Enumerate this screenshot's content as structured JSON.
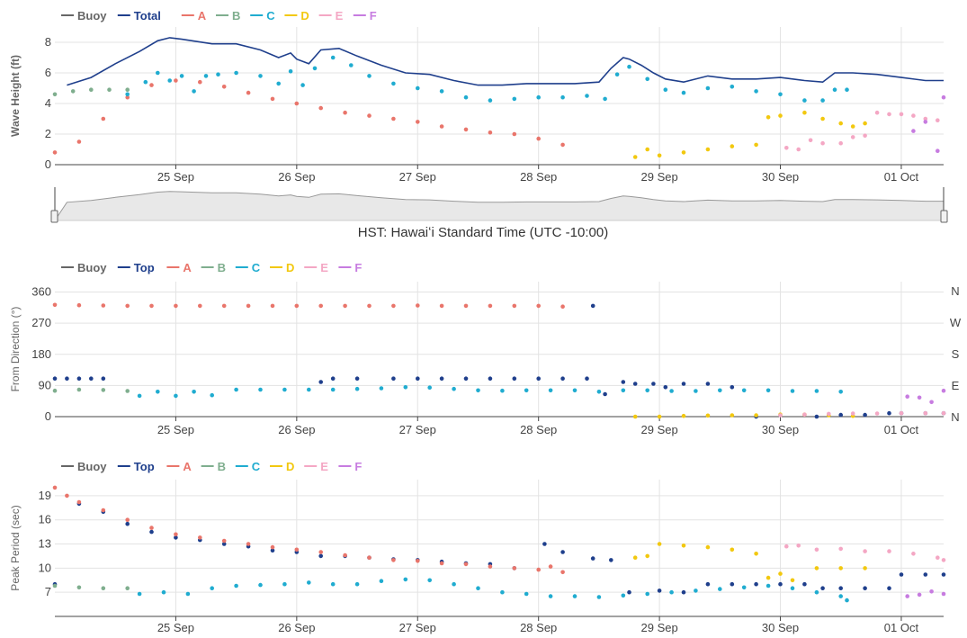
{
  "colors": {
    "Buoy": "#666666",
    "Total": "#1f3f8c",
    "Top": "#1f3f8c",
    "A": "#e9756b",
    "B": "#7fae8e",
    "C": "#20acd0",
    "D": "#f2c80f",
    "E": "#f4a7c4",
    "F": "#c77ce0",
    "navigator_fill": "#e8e8e8",
    "navigator_line": "#999999"
  },
  "timezone_label": "HST: Hawaiʻi Standard Time (UTC -10:00)",
  "x_ticks": [
    "25 Sep",
    "26 Sep",
    "27 Sep",
    "28 Sep",
    "29 Sep",
    "30 Sep",
    "01 Oct"
  ],
  "compass_labels": [
    "N",
    "W",
    "S",
    "E",
    "N"
  ],
  "chart_data": [
    {
      "type": "scatter",
      "ylabel": "Wave Height (ft)",
      "ylim": [
        0,
        9
      ],
      "yticks": [
        0,
        2,
        4,
        6,
        8
      ],
      "xlabel": "HST: Hawaiʻi Standard Time (UTC -10:00)",
      "x_categories": [
        "25 Sep",
        "26 Sep",
        "27 Sep",
        "28 Sep",
        "29 Sep",
        "30 Sep",
        "01 Oct"
      ],
      "legend": [
        "Buoy",
        "Total",
        "A",
        "B",
        "C",
        "D",
        "E",
        "F"
      ],
      "legend_position": "top-left",
      "grid": true,
      "series": [
        {
          "name": "Total",
          "style": "line",
          "x": [
            24.1,
            24.3,
            24.5,
            24.7,
            24.85,
            24.95,
            25.05,
            25.3,
            25.5,
            25.7,
            25.85,
            25.95,
            26.0,
            26.1,
            26.2,
            26.35,
            26.5,
            26.7,
            26.9,
            27.1,
            27.3,
            27.5,
            27.7,
            27.9,
            28.1,
            28.3,
            28.5,
            28.6,
            28.7,
            28.75,
            28.85,
            28.95,
            29.05,
            29.2,
            29.4,
            29.6,
            29.8,
            30.0,
            30.2,
            30.35,
            30.45,
            30.6,
            30.8,
            31.0,
            31.2,
            31.35
          ],
          "y": [
            5.2,
            5.7,
            6.6,
            7.4,
            8.1,
            8.3,
            8.2,
            7.9,
            7.9,
            7.5,
            7.0,
            7.3,
            6.9,
            6.6,
            7.5,
            7.6,
            7.1,
            6.5,
            6.0,
            5.9,
            5.5,
            5.2,
            5.2,
            5.3,
            5.3,
            5.3,
            5.4,
            6.3,
            7.0,
            6.9,
            6.5,
            6.0,
            5.6,
            5.4,
            5.8,
            5.6,
            5.6,
            5.7,
            5.5,
            5.4,
            6.0,
            6.0,
            5.9,
            5.7,
            5.5,
            5.5
          ]
        },
        {
          "name": "A",
          "style": "dots",
          "x": [
            24.0,
            24.2,
            24.4,
            24.6,
            24.8,
            25.0,
            25.2,
            25.4,
            25.6,
            25.8,
            26.0,
            26.2,
            26.4,
            26.6,
            26.8,
            27.0,
            27.2,
            27.4,
            27.6,
            27.8,
            28.0,
            28.2
          ],
          "y": [
            0.8,
            1.5,
            3.0,
            4.4,
            5.2,
            5.5,
            5.4,
            5.1,
            4.7,
            4.3,
            4.0,
            3.7,
            3.4,
            3.2,
            3.0,
            2.8,
            2.5,
            2.3,
            2.1,
            2.0,
            1.7,
            1.3
          ]
        },
        {
          "name": "B",
          "style": "dots",
          "x": [
            24.0,
            24.15,
            24.3,
            24.45,
            24.6
          ],
          "y": [
            4.6,
            4.8,
            4.9,
            4.9,
            4.9
          ]
        },
        {
          "name": "C",
          "style": "dots",
          "x": [
            24.6,
            24.75,
            24.85,
            24.95,
            25.05,
            25.15,
            25.25,
            25.35,
            25.5,
            25.7,
            25.85,
            25.95,
            26.05,
            26.15,
            26.3,
            26.45,
            26.6,
            26.8,
            27.0,
            27.2,
            27.4,
            27.6,
            27.8,
            28.0,
            28.2,
            28.4,
            28.55,
            28.65,
            28.75,
            28.9,
            29.05,
            29.2,
            29.4,
            29.6,
            29.8,
            30.0,
            30.2,
            30.35,
            30.45,
            30.55
          ],
          "y": [
            4.6,
            5.4,
            6.0,
            5.5,
            5.8,
            4.8,
            5.8,
            5.9,
            6.0,
            5.8,
            5.3,
            6.1,
            5.2,
            6.3,
            7.0,
            6.5,
            5.8,
            5.3,
            5.0,
            4.8,
            4.4,
            4.2,
            4.3,
            4.4,
            4.4,
            4.5,
            4.3,
            5.9,
            6.4,
            5.6,
            4.9,
            4.7,
            5.0,
            5.1,
            4.8,
            4.6,
            4.2,
            4.2,
            4.9,
            4.9
          ]
        },
        {
          "name": "D",
          "style": "dots",
          "x": [
            28.8,
            28.9,
            29.0,
            29.2,
            29.4,
            29.6,
            29.8,
            29.9,
            30.0,
            30.2,
            30.35,
            30.5,
            30.6,
            30.7
          ],
          "y": [
            0.5,
            1.0,
            0.6,
            0.8,
            1.0,
            1.2,
            1.3,
            3.1,
            3.2,
            3.4,
            3.0,
            2.7,
            2.5,
            2.7
          ]
        },
        {
          "name": "E",
          "style": "dots",
          "x": [
            30.05,
            30.15,
            30.25,
            30.35,
            30.5,
            30.6,
            30.7,
            30.8,
            30.9,
            31.0,
            31.1,
            31.2,
            31.3
          ],
          "y": [
            1.1,
            1.0,
            1.6,
            1.4,
            1.4,
            1.8,
            1.9,
            3.4,
            3.3,
            3.3,
            3.2,
            3.0,
            2.9
          ]
        },
        {
          "name": "F",
          "style": "dots",
          "x": [
            31.1,
            31.2,
            31.3,
            31.35
          ],
          "y": [
            2.2,
            2.8,
            0.9,
            4.4
          ]
        }
      ]
    },
    {
      "type": "scatter",
      "ylabel": "From Direction (°)",
      "ylim": [
        0,
        390
      ],
      "yticks": [
        0,
        90,
        180,
        270,
        360
      ],
      "x_categories": [
        "25 Sep",
        "26 Sep",
        "27 Sep",
        "28 Sep",
        "29 Sep",
        "30 Sep",
        "01 Oct"
      ],
      "legend": [
        "Buoy",
        "Top",
        "A",
        "B",
        "C",
        "D",
        "E",
        "F"
      ],
      "legend_position": "top-left",
      "right_axis_labels": [
        "N",
        "W",
        "S",
        "E",
        "N"
      ],
      "grid": true,
      "series": [
        {
          "name": "Top",
          "style": "dots",
          "x": [
            24.0,
            24.1,
            24.2,
            24.3,
            24.4,
            26.2,
            26.3,
            26.5,
            26.8,
            27.0,
            27.2,
            27.4,
            27.6,
            27.8,
            28.0,
            28.2,
            28.4,
            28.45,
            28.55,
            28.7,
            28.8,
            28.95,
            29.05,
            29.2,
            29.4,
            29.6,
            29.8,
            30.3,
            30.5,
            30.7,
            30.9,
            31.0,
            31.2,
            31.35
          ],
          "y": [
            110,
            110,
            110,
            110,
            110,
            100,
            110,
            110,
            110,
            110,
            110,
            110,
            110,
            110,
            110,
            110,
            110,
            320,
            65,
            100,
            95,
            95,
            85,
            95,
            95,
            85,
            0,
            0,
            5,
            5,
            10,
            10,
            10,
            10
          ]
        },
        {
          "name": "A",
          "style": "dots",
          "x": [
            24.0,
            24.2,
            24.4,
            24.6,
            24.8,
            25.0,
            25.2,
            25.4,
            25.6,
            25.8,
            26.0,
            26.2,
            26.4,
            26.6,
            26.8,
            27.0,
            27.2,
            27.4,
            27.6,
            27.8,
            28.0,
            28.2
          ],
          "y": [
            323,
            322,
            321,
            320,
            320,
            320,
            320,
            320,
            320,
            320,
            320,
            320,
            320,
            320,
            320,
            321,
            320,
            320,
            320,
            320,
            320,
            318
          ]
        },
        {
          "name": "B",
          "style": "dots",
          "x": [
            24.0,
            24.2,
            24.4,
            24.6
          ],
          "y": [
            75,
            78,
            77,
            74
          ]
        },
        {
          "name": "C",
          "style": "dots",
          "x": [
            24.7,
            24.85,
            25.0,
            25.15,
            25.3,
            25.5,
            25.7,
            25.9,
            26.1,
            26.3,
            26.5,
            26.7,
            26.9,
            27.1,
            27.3,
            27.5,
            27.7,
            27.9,
            28.1,
            28.3,
            28.5,
            28.7,
            28.9,
            29.1,
            29.3,
            29.5,
            29.7,
            29.9,
            30.1,
            30.3,
            30.5
          ],
          "y": [
            60,
            72,
            60,
            72,
            62,
            78,
            78,
            78,
            78,
            78,
            80,
            82,
            85,
            84,
            80,
            76,
            75,
            76,
            76,
            76,
            72,
            76,
            76,
            74,
            74,
            76,
            76,
            76,
            74,
            74,
            72
          ]
        },
        {
          "name": "D",
          "style": "dots",
          "x": [
            28.8,
            29.0,
            29.2,
            29.4,
            29.6,
            29.8,
            30.0,
            30.2,
            30.4,
            30.6
          ],
          "y": [
            0,
            0,
            2,
            3,
            4,
            4,
            6,
            6,
            4,
            2
          ]
        },
        {
          "name": "E",
          "style": "dots",
          "x": [
            30.0,
            30.2,
            30.4,
            30.6,
            30.8,
            31.0,
            31.2,
            31.35
          ],
          "y": [
            4,
            6,
            8,
            9,
            9,
            10,
            10,
            10
          ]
        },
        {
          "name": "F",
          "style": "dots",
          "x": [
            31.05,
            31.15,
            31.25,
            31.35
          ],
          "y": [
            58,
            55,
            42,
            75
          ]
        }
      ]
    },
    {
      "type": "scatter",
      "ylabel": "Peak Period (sec)",
      "ylim": [
        4,
        21
      ],
      "yticks": [
        7,
        10,
        13,
        16,
        19
      ],
      "x_categories": [
        "25 Sep",
        "26 Sep",
        "27 Sep",
        "28 Sep",
        "29 Sep",
        "30 Sep",
        "01 Oct"
      ],
      "legend": [
        "Buoy",
        "Top",
        "A",
        "B",
        "C",
        "D",
        "E",
        "F"
      ],
      "legend_position": "top-left",
      "grid": true,
      "series": [
        {
          "name": "Top",
          "style": "dots",
          "x": [
            24.0,
            24.2,
            24.4,
            24.6,
            24.8,
            25.0,
            25.2,
            25.4,
            25.6,
            25.8,
            26.0,
            26.2,
            26.4,
            26.6,
            26.8,
            27.0,
            27.2,
            27.4,
            27.6,
            27.8,
            28.05,
            28.2,
            28.45,
            28.6,
            28.75,
            29.0,
            29.2,
            29.4,
            29.6,
            29.8,
            30.0,
            30.2,
            30.35,
            30.5,
            30.7,
            30.9,
            31.0,
            31.2,
            31.35
          ],
          "y": [
            8,
            18,
            17,
            15.5,
            14.5,
            13.8,
            13.5,
            13,
            12.7,
            12.2,
            12,
            11.5,
            11.5,
            11.3,
            11.1,
            11.0,
            10.8,
            10.6,
            10.5,
            10,
            13,
            12,
            11.2,
            11,
            7,
            7.2,
            7,
            8,
            8,
            8,
            8,
            8,
            7.5,
            7.5,
            7.5,
            7.5,
            9.2,
            9.2,
            9.2
          ]
        },
        {
          "name": "A",
          "style": "dots",
          "x": [
            24.0,
            24.1,
            24.2,
            24.4,
            24.6,
            24.8,
            25.0,
            25.2,
            25.4,
            25.6,
            25.8,
            26.0,
            26.2,
            26.4,
            26.6,
            26.8,
            27.0,
            27.2,
            27.4,
            27.6,
            27.8,
            28.0,
            28.1,
            28.2
          ],
          "y": [
            20,
            19,
            18.2,
            17.2,
            16,
            15,
            14.2,
            13.8,
            13.4,
            13,
            12.6,
            12.3,
            12,
            11.6,
            11.3,
            11,
            10.9,
            10.6,
            10.5,
            10.2,
            10,
            9.8,
            10.2,
            9.5
          ]
        },
        {
          "name": "B",
          "style": "dots",
          "x": [
            24.0,
            24.2,
            24.4,
            24.6
          ],
          "y": [
            7.8,
            7.6,
            7.5,
            7.5
          ]
        },
        {
          "name": "C",
          "style": "dots",
          "x": [
            24.7,
            24.9,
            25.1,
            25.3,
            25.5,
            25.7,
            25.9,
            26.1,
            26.3,
            26.5,
            26.7,
            26.9,
            27.1,
            27.3,
            27.5,
            27.7,
            27.9,
            28.1,
            28.3,
            28.5,
            28.7,
            28.9,
            29.1,
            29.3,
            29.5,
            29.7,
            29.9,
            30.1,
            30.3,
            30.5,
            30.55
          ],
          "y": [
            6.8,
            7.0,
            6.8,
            7.5,
            7.8,
            7.9,
            8.0,
            8.2,
            8.0,
            8.0,
            8.4,
            8.6,
            8.5,
            8.0,
            7.5,
            7.0,
            6.8,
            6.5,
            6.5,
            6.4,
            6.6,
            6.8,
            7.0,
            7.2,
            7.4,
            7.6,
            7.8,
            7.5,
            7.0,
            6.5,
            6.0
          ]
        },
        {
          "name": "D",
          "style": "dots",
          "x": [
            28.8,
            28.9,
            29.0,
            29.2,
            29.4,
            29.6,
            29.8,
            29.9,
            30.0,
            30.1,
            30.3,
            30.5,
            30.7
          ],
          "y": [
            11.3,
            11.5,
            13,
            12.8,
            12.6,
            12.3,
            11.8,
            8.8,
            9.3,
            8.5,
            10,
            10,
            10
          ]
        },
        {
          "name": "E",
          "style": "dots",
          "x": [
            30.05,
            30.15,
            30.3,
            30.5,
            30.7,
            30.9,
            31.1,
            31.3,
            31.35
          ],
          "y": [
            12.7,
            12.8,
            12.3,
            12.4,
            12.1,
            12.1,
            11.8,
            11.3,
            11
          ]
        },
        {
          "name": "F",
          "style": "dots",
          "x": [
            31.05,
            31.15,
            31.25,
            31.35
          ],
          "y": [
            6.5,
            6.7,
            7.1,
            6.8
          ]
        }
      ]
    }
  ]
}
